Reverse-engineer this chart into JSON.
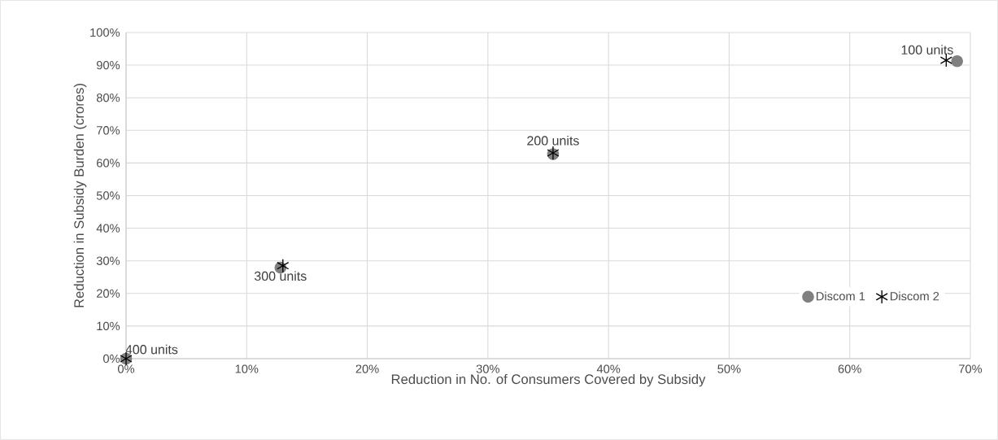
{
  "chart_data": {
    "type": "scatter",
    "xlabel": "Reduction in No. of Consumers Covered by Subsidy",
    "ylabel": "Reduction in Subsidy Burden (crores)",
    "series": [
      {
        "name": "Discom 1",
        "color": "#808080",
        "marker": "circle",
        "x": [
          0,
          12.8,
          35.4,
          68.9
        ],
        "values": [
          0,
          27.9,
          62.7,
          91.2
        ]
      },
      {
        "name": "Discom 2",
        "color": "#000000",
        "marker": "cross",
        "x": [
          0,
          13.0,
          35.4,
          68.0
        ],
        "values": [
          0,
          28.5,
          63.1,
          91.5
        ]
      }
    ],
    "annotations": [
      {
        "text": "100 units",
        "x": 68.9,
        "y": 91.2
      },
      {
        "text": "200 units",
        "x": 35.4,
        "y": 62.7
      },
      {
        "text": "300 units",
        "x": 12.8,
        "y": 27.9
      },
      {
        "text": "400 units",
        "x": 0,
        "y": 0
      }
    ],
    "xlim": [
      0,
      70
    ],
    "xticks": [
      {
        "value": 0,
        "label": "0%"
      },
      {
        "value": 10,
        "label": "10%"
      },
      {
        "value": 20,
        "label": "20%"
      },
      {
        "value": 30,
        "label": "30%"
      },
      {
        "value": 40,
        "label": "40%"
      },
      {
        "value": 50,
        "label": "50%"
      },
      {
        "value": 60,
        "label": "60%"
      },
      {
        "value": 70,
        "label": "70%"
      }
    ],
    "ylim": [
      0,
      100
    ],
    "yticks": [
      {
        "value": 0,
        "label": "0%"
      },
      {
        "value": 10,
        "label": "10%"
      },
      {
        "value": 20,
        "label": "20%"
      },
      {
        "value": 30,
        "label": "30%"
      },
      {
        "value": 40,
        "label": "40%"
      },
      {
        "value": 50,
        "label": "50%"
      },
      {
        "value": 60,
        "label": "60%"
      },
      {
        "value": 70,
        "label": "70%"
      },
      {
        "value": 80,
        "label": "80%"
      },
      {
        "value": 90,
        "label": "90%"
      },
      {
        "value": 100,
        "label": "100%"
      }
    ],
    "grid": true,
    "legend": "bottom right"
  }
}
